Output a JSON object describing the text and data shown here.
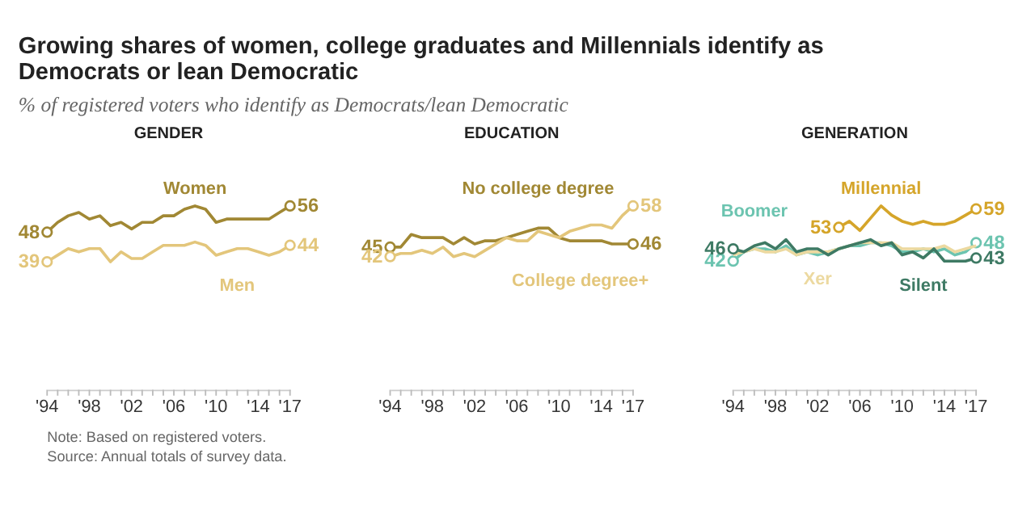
{
  "chart_data": [
    {
      "type": "line",
      "title": "GENDER",
      "tick_labels": "x",
      "grid": false,
      "legend": false,
      "xlim": [
        1994,
        2017
      ],
      "xticks": [
        {
          "value": 1994,
          "label": "'94"
        },
        {
          "value": 1995,
          "label": null
        },
        {
          "value": 1996,
          "label": null
        },
        {
          "value": 1997,
          "label": null
        },
        {
          "value": 1998,
          "label": "'98"
        },
        {
          "value": 1999,
          "label": null
        },
        {
          "value": 2000,
          "label": null
        },
        {
          "value": 2001,
          "label": null
        },
        {
          "value": 2002,
          "label": "'02"
        },
        {
          "value": 2003,
          "label": null
        },
        {
          "value": 2004,
          "label": null
        },
        {
          "value": 2005,
          "label": null
        },
        {
          "value": 2006,
          "label": "'06"
        },
        {
          "value": 2007,
          "label": null
        },
        {
          "value": 2008,
          "label": null
        },
        {
          "value": 2009,
          "label": null
        },
        {
          "value": 2010,
          "label": "'10"
        },
        {
          "value": 2011,
          "label": null
        },
        {
          "value": 2012,
          "label": null
        },
        {
          "value": 2013,
          "label": null
        },
        {
          "value": 2014,
          "label": "'14"
        },
        {
          "value": 2015,
          "label": null
        },
        {
          "value": 2016,
          "label": null
        },
        {
          "value": 2017,
          "label": "'17"
        }
      ],
      "x": [
        1994,
        1995,
        1996,
        1997,
        1998,
        1999,
        2000,
        2001,
        2002,
        2003,
        2004,
        2005,
        2006,
        2007,
        2008,
        2009,
        2010,
        2011,
        2012,
        2013,
        2014,
        2015,
        2016,
        2017
      ],
      "series": [
        {
          "name": "Women",
          "color": "#a18834",
          "values": [
            48,
            51,
            53,
            54,
            52,
            53,
            50,
            51,
            49,
            51,
            51,
            53,
            53,
            55,
            56,
            55,
            51,
            52,
            52,
            52,
            52,
            52,
            54,
            56
          ],
          "value_labels": [
            "48",
            null,
            null,
            null,
            null,
            null,
            null,
            null,
            null,
            null,
            null,
            null,
            null,
            null,
            null,
            null,
            null,
            null,
            null,
            null,
            null,
            null,
            null,
            "56"
          ]
        },
        {
          "name": "Men",
          "color": "#e3c67b",
          "values": [
            39,
            41,
            43,
            42,
            43,
            43,
            39,
            42,
            40,
            40,
            42,
            44,
            44,
            44,
            45,
            44,
            41,
            42,
            43,
            43,
            42,
            41,
            42,
            44
          ],
          "value_labels": [
            "39",
            null,
            null,
            null,
            null,
            null,
            null,
            null,
            null,
            null,
            null,
            null,
            null,
            null,
            null,
            null,
            null,
            null,
            null,
            null,
            null,
            null,
            null,
            "44"
          ]
        }
      ]
    },
    {
      "type": "line",
      "title": "EDUCATION",
      "tick_labels": "x",
      "grid": false,
      "legend": false,
      "xlim": [
        1994,
        2017
      ],
      "xticks": [
        {
          "value": 1994,
          "label": "'94"
        },
        {
          "value": 1995,
          "label": null
        },
        {
          "value": 1996,
          "label": null
        },
        {
          "value": 1997,
          "label": null
        },
        {
          "value": 1998,
          "label": "'98"
        },
        {
          "value": 1999,
          "label": null
        },
        {
          "value": 2000,
          "label": null
        },
        {
          "value": 2001,
          "label": null
        },
        {
          "value": 2002,
          "label": "'02"
        },
        {
          "value": 2003,
          "label": null
        },
        {
          "value": 2004,
          "label": null
        },
        {
          "value": 2005,
          "label": null
        },
        {
          "value": 2006,
          "label": "'06"
        },
        {
          "value": 2007,
          "label": null
        },
        {
          "value": 2008,
          "label": null
        },
        {
          "value": 2009,
          "label": null
        },
        {
          "value": 2010,
          "label": "'10"
        },
        {
          "value": 2011,
          "label": null
        },
        {
          "value": 2012,
          "label": null
        },
        {
          "value": 2013,
          "label": null
        },
        {
          "value": 2014,
          "label": "'14"
        },
        {
          "value": 2015,
          "label": null
        },
        {
          "value": 2016,
          "label": null
        },
        {
          "value": 2017,
          "label": "'17"
        }
      ],
      "x": [
        1994,
        1995,
        1996,
        1997,
        1998,
        1999,
        2000,
        2001,
        2002,
        2003,
        2004,
        2005,
        2006,
        2007,
        2008,
        2009,
        2010,
        2011,
        2012,
        2013,
        2014,
        2015,
        2016,
        2017
      ],
      "series": [
        {
          "name": "No college degree",
          "color": "#a18834",
          "values": [
            45,
            45,
            49,
            48,
            48,
            48,
            46,
            48,
            46,
            47,
            47,
            48,
            49,
            50,
            51,
            51,
            48,
            47,
            47,
            47,
            47,
            46,
            46,
            46
          ],
          "value_labels": [
            "45",
            null,
            null,
            null,
            null,
            null,
            null,
            null,
            null,
            null,
            null,
            null,
            null,
            null,
            null,
            null,
            null,
            null,
            null,
            null,
            null,
            null,
            null,
            "46"
          ]
        },
        {
          "name": "College degree+",
          "color": "#e3c67b",
          "values": [
            42,
            43,
            43,
            44,
            43,
            45,
            42,
            43,
            42,
            44,
            46,
            48,
            47,
            47,
            50,
            49,
            48,
            50,
            51,
            52,
            52,
            51,
            55,
            58
          ],
          "value_labels": [
            "42",
            null,
            null,
            null,
            null,
            null,
            null,
            null,
            null,
            null,
            null,
            null,
            null,
            null,
            null,
            null,
            null,
            null,
            null,
            null,
            null,
            null,
            null,
            "58"
          ]
        }
      ]
    },
    {
      "type": "line",
      "title": "GENERATION",
      "tick_labels": "x",
      "grid": false,
      "legend": false,
      "xlim": [
        1994,
        2017
      ],
      "xticks": [
        {
          "value": 1994,
          "label": "'94"
        },
        {
          "value": 1995,
          "label": null
        },
        {
          "value": 1996,
          "label": null
        },
        {
          "value": 1997,
          "label": null
        },
        {
          "value": 1998,
          "label": "'98"
        },
        {
          "value": 1999,
          "label": null
        },
        {
          "value": 2000,
          "label": null
        },
        {
          "value": 2001,
          "label": null
        },
        {
          "value": 2002,
          "label": "'02"
        },
        {
          "value": 2003,
          "label": null
        },
        {
          "value": 2004,
          "label": null
        },
        {
          "value": 2005,
          "label": null
        },
        {
          "value": 2006,
          "label": "'06"
        },
        {
          "value": 2007,
          "label": null
        },
        {
          "value": 2008,
          "label": null
        },
        {
          "value": 2009,
          "label": null
        },
        {
          "value": 2010,
          "label": "'10"
        },
        {
          "value": 2011,
          "label": null
        },
        {
          "value": 2012,
          "label": null
        },
        {
          "value": 2013,
          "label": null
        },
        {
          "value": 2014,
          "label": "'14"
        },
        {
          "value": 2015,
          "label": null
        },
        {
          "value": 2016,
          "label": null
        },
        {
          "value": 2017,
          "label": "'17"
        }
      ],
      "x": [
        1994,
        1995,
        1996,
        1997,
        1998,
        1999,
        2000,
        2001,
        2002,
        2003,
        2004,
        2005,
        2006,
        2007,
        2008,
        2009,
        2010,
        2011,
        2012,
        2013,
        2014,
        2015,
        2016,
        2017
      ],
      "series": [
        {
          "name": "Millennial",
          "color": "#d5a52a",
          "values": [
            null,
            null,
            null,
            null,
            null,
            null,
            null,
            null,
            null,
            null,
            53,
            55,
            52,
            56,
            60,
            57,
            55,
            54,
            55,
            54,
            54,
            55,
            57,
            59
          ],
          "value_labels": [
            null,
            null,
            null,
            null,
            null,
            null,
            null,
            null,
            null,
            null,
            "53",
            null,
            null,
            null,
            null,
            null,
            null,
            null,
            null,
            null,
            null,
            null,
            null,
            "59"
          ]
        },
        {
          "name": "Boomer",
          "color": "#6cc4b0",
          "values": [
            42,
            45,
            46,
            46,
            45,
            47,
            44,
            45,
            44,
            45,
            46,
            47,
            47,
            48,
            48,
            47,
            45,
            45,
            46,
            45,
            46,
            44,
            45,
            48
          ],
          "value_labels": [
            "42",
            null,
            null,
            null,
            null,
            null,
            null,
            null,
            null,
            null,
            null,
            null,
            null,
            null,
            null,
            null,
            null,
            null,
            null,
            null,
            null,
            null,
            null,
            "48"
          ]
        },
        {
          "name": "Xer",
          "color": "#ecd9a0",
          "values": [
            44,
            45,
            46,
            45,
            45,
            46,
            44,
            45,
            45,
            45,
            46,
            47,
            48,
            48,
            48,
            48,
            46,
            46,
            46,
            46,
            47,
            45,
            46,
            47
          ]
        },
        {
          "name": "Silent",
          "color": "#3e7a64",
          "values": [
            46,
            45,
            47,
            48,
            46,
            49,
            45,
            46,
            46,
            44,
            46,
            47,
            48,
            49,
            47,
            48,
            44,
            45,
            43,
            46,
            42,
            42,
            42,
            43
          ],
          "value_labels": [
            "46",
            null,
            null,
            null,
            null,
            null,
            null,
            null,
            null,
            null,
            null,
            null,
            null,
            null,
            null,
            null,
            null,
            null,
            null,
            null,
            null,
            null,
            null,
            "43"
          ]
        }
      ]
    },
    {
      "type": "other",
      "title": "Growing shares of women, college graduates and Millennials identify as Democrats or lean Democratic",
      "subtitle": "% of registered voters who identify as Democrats/lean Democratic",
      "annotations": [
        "Note: Based on registered voters.",
        "Source: Annual totals of survey data."
      ]
    }
  ]
}
